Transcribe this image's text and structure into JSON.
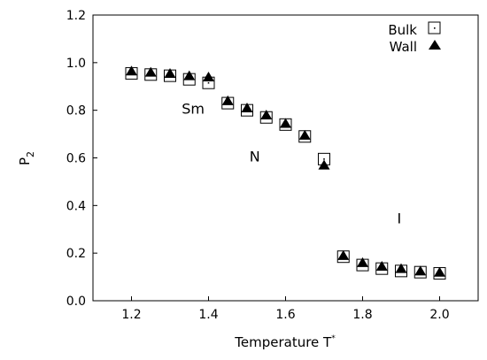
{
  "chart_data": {
    "type": "scatter",
    "xlabel": "Temperature T",
    "xlabel_superscript": "*",
    "ylabel": "P",
    "ylabel_subscript": "2",
    "xlim": [
      1.1,
      2.1
    ],
    "ylim": [
      0,
      1.2
    ],
    "xticks": [
      "1.2",
      "1.4",
      "1.6",
      "1.8",
      "2.0"
    ],
    "yticks": [
      "0.0",
      "0.2",
      "0.4",
      "0.6",
      "0.8",
      "1.0",
      "1.2"
    ],
    "xtick_values": [
      1.2,
      1.4,
      1.6,
      1.8,
      2.0
    ],
    "ytick_values": [
      0.0,
      0.2,
      0.4,
      0.6,
      0.8,
      1.0,
      1.2
    ],
    "grid": false,
    "legend_position": "top-right",
    "series": [
      {
        "name": "Bulk",
        "marker": "open-square-dot",
        "color": "#000000",
        "x": [
          1.2,
          1.25,
          1.3,
          1.35,
          1.4,
          1.45,
          1.5,
          1.55,
          1.6,
          1.65,
          1.7,
          1.75,
          1.8,
          1.85,
          1.9,
          1.95,
          2.0
        ],
        "y": [
          0.955,
          0.95,
          0.945,
          0.93,
          0.915,
          0.83,
          0.8,
          0.77,
          0.74,
          0.69,
          0.595,
          0.185,
          0.15,
          0.135,
          0.125,
          0.12,
          0.115
        ]
      },
      {
        "name": "Wall",
        "marker": "filled-triangle",
        "color": "#000000",
        "x": [
          1.2,
          1.25,
          1.3,
          1.35,
          1.4,
          1.45,
          1.5,
          1.55,
          1.6,
          1.65,
          1.7,
          1.75,
          1.8,
          1.85,
          1.9,
          1.95,
          2.0
        ],
        "y": [
          0.965,
          0.96,
          0.955,
          0.945,
          0.94,
          0.84,
          0.81,
          0.78,
          0.745,
          0.695,
          0.57,
          0.19,
          0.16,
          0.145,
          0.135,
          0.125,
          0.12
        ]
      }
    ],
    "annotations": [
      {
        "text": "Sm",
        "x": 1.36,
        "y": 0.785
      },
      {
        "text": "N",
        "x": 1.52,
        "y": 0.585
      },
      {
        "text": "I",
        "x": 1.895,
        "y": 0.325
      }
    ]
  }
}
